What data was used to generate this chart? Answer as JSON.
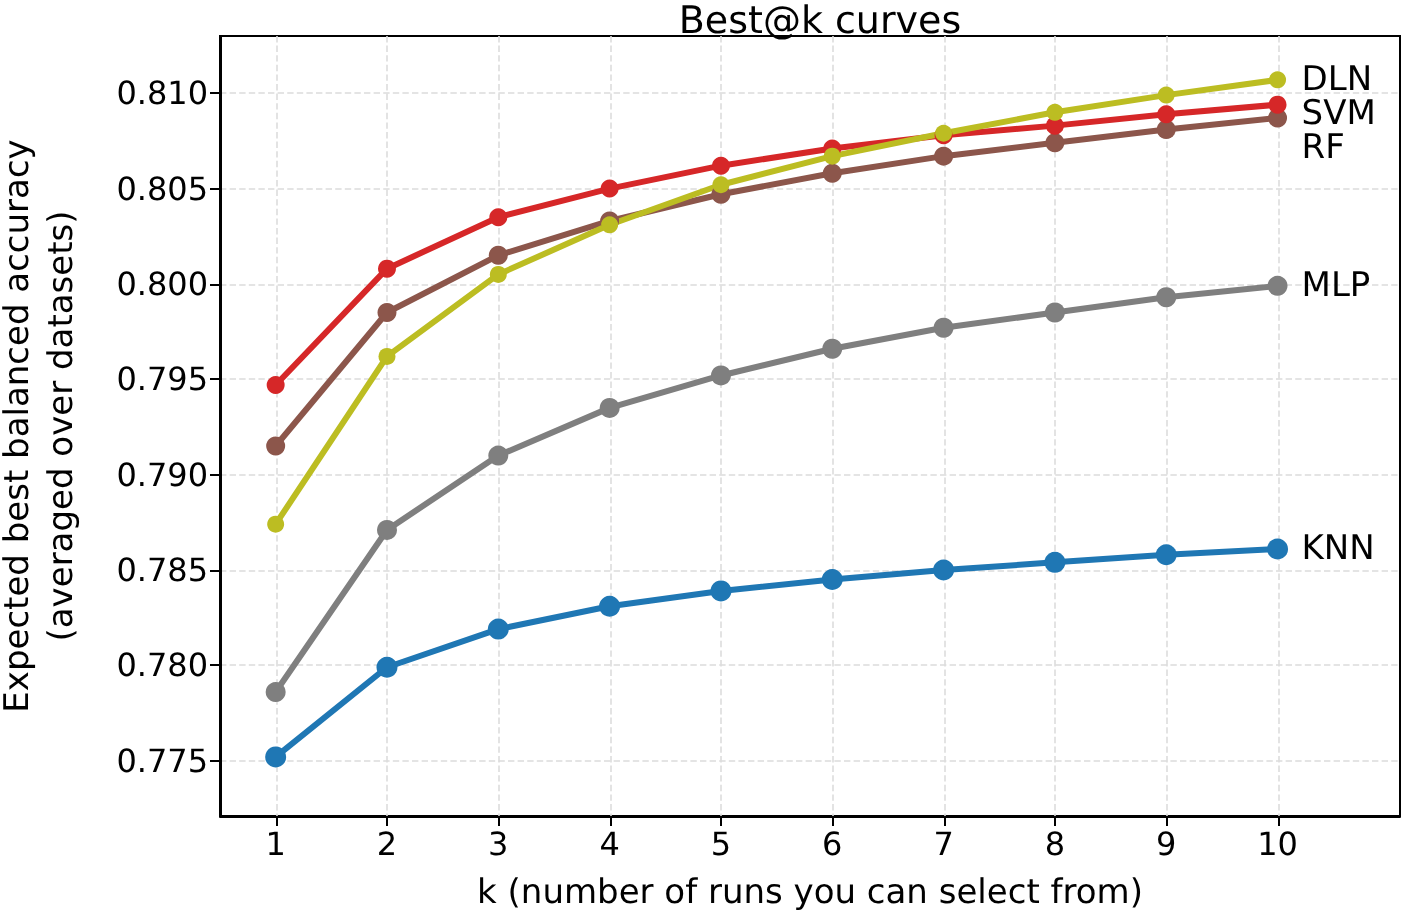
{
  "chart_data": {
    "type": "line",
    "title": "Best@k curves",
    "xlabel": "k (number of runs you can select from)",
    "ylabel": "Expected best balanced accuracy\n(averaged over datasets)",
    "x": [
      1,
      2,
      3,
      4,
      5,
      6,
      7,
      8,
      9,
      10
    ],
    "series": [
      {
        "name": "KNN",
        "color": "#1f77b4",
        "values": [
          0.7752,
          0.7799,
          0.7819,
          0.7831,
          0.7839,
          0.7845,
          0.785,
          0.7854,
          0.7858,
          0.7861
        ]
      },
      {
        "name": "MLP",
        "color": "#7f7f7f",
        "values": [
          0.7786,
          0.7871,
          0.791,
          0.7935,
          0.7952,
          0.7966,
          0.7977,
          0.7985,
          0.7993,
          0.7999
        ]
      },
      {
        "name": "RF",
        "color": "#8c564b",
        "values": [
          0.7915,
          0.7985,
          0.8015,
          0.8033,
          0.8047,
          0.8058,
          0.8067,
          0.8074,
          0.8081,
          0.8087
        ]
      },
      {
        "name": "SVM",
        "color": "#d62728",
        "values": [
          0.7947,
          0.8008,
          0.8035,
          0.805,
          0.8062,
          0.8071,
          0.8078,
          0.8083,
          0.8089,
          0.8094
        ]
      },
      {
        "name": "DLN",
        "color": "#bcbd22",
        "values": [
          0.7874,
          0.7962,
          0.8005,
          0.8031,
          0.8052,
          0.8067,
          0.8079,
          0.809,
          0.8099,
          0.8107
        ]
      }
    ],
    "xlim": [
      0.5,
      11.1
    ],
    "xticks": [
      1,
      2,
      3,
      4,
      5,
      6,
      7,
      8,
      9,
      10
    ],
    "ylim": [
      0.7721,
      0.813
    ],
    "yticks": [
      {
        "value": 0.775,
        "label": "0.775"
      },
      {
        "value": 0.78,
        "label": "0.780"
      },
      {
        "value": 0.785,
        "label": "0.785"
      },
      {
        "value": 0.79,
        "label": "0.790"
      },
      {
        "value": 0.795,
        "label": "0.795"
      },
      {
        "value": 0.8,
        "label": "0.800"
      },
      {
        "value": 0.805,
        "label": "0.805"
      },
      {
        "value": 0.81,
        "label": "0.810"
      }
    ],
    "grid": true,
    "legend": false,
    "marker": "circle",
    "line_style": "solid"
  }
}
